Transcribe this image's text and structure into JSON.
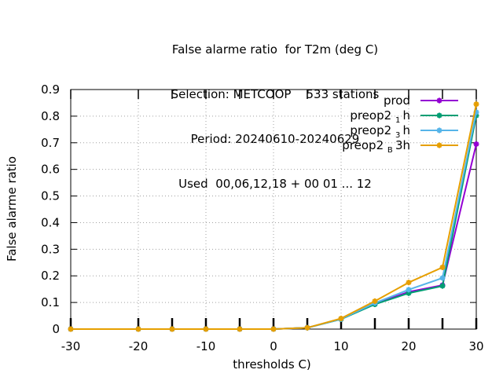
{
  "chart_data": {
    "type": "line",
    "title": [
      "False alarme ratio  for T2m (deg C)",
      "Selection: METCOOP    533 stations",
      "Period: 20240610-20240629",
      "Used  00,06,12,18 + 00 01 ... 12"
    ],
    "xlabel": "thresholds C)",
    "ylabel": "False alarme ratio",
    "xlim": [
      -30,
      30
    ],
    "ylim": [
      0,
      0.9
    ],
    "xticks": [
      -30,
      -20,
      -10,
      0,
      10,
      20,
      30
    ],
    "xtick_labels": [
      "-30",
      "-20",
      "-10",
      "0",
      "10",
      "20",
      "30"
    ],
    "yticks": [
      0,
      0.1,
      0.2,
      0.3,
      0.4,
      0.5,
      0.6,
      0.7,
      0.8,
      0.9
    ],
    "ytick_labels": [
      "0",
      "0.1",
      "0.2",
      "0.3",
      "0.4",
      "0.5",
      "0.6",
      "0.7",
      "0.8",
      "0.9"
    ],
    "grid": true,
    "legend_position": "top-right",
    "x": [
      -30,
      -20,
      -15,
      -10,
      -5,
      0,
      5,
      10,
      15,
      20,
      25,
      30
    ],
    "series": [
      {
        "name": "prod",
        "legend": {
          "main": "preop2",
          "sub": "",
          "tail": ""
        },
        "color": "#9400d3",
        "values": [
          0,
          0,
          0,
          0,
          0,
          0,
          0.005,
          0.038,
          0.095,
          0.14,
          0.165,
          0.695
        ]
      },
      {
        "name": "preop2 1 h",
        "legend": {
          "main": "preop2 ",
          "sub": "1",
          "tail": "h"
        },
        "color": "#009e73",
        "values": [
          0,
          0,
          0,
          0,
          0,
          0,
          0.005,
          0.037,
          0.093,
          0.135,
          0.162,
          0.802
        ]
      },
      {
        "name": "preop2 3 h",
        "legend": {
          "main": "preop2 ",
          "sub": "3",
          "tail": "h"
        },
        "color": "#56b4e9",
        "values": [
          0,
          0,
          0,
          0,
          0,
          0,
          0.005,
          0.038,
          0.098,
          0.148,
          0.192,
          0.815
        ]
      },
      {
        "name": "preop2 B 3h",
        "legend": {
          "main": "preop2 ",
          "sub": "B",
          "tail": "3h"
        },
        "color": "#e69f00",
        "values": [
          0,
          0,
          0,
          0,
          0,
          0,
          0.005,
          0.04,
          0.105,
          0.175,
          0.232,
          0.845
        ]
      }
    ]
  }
}
